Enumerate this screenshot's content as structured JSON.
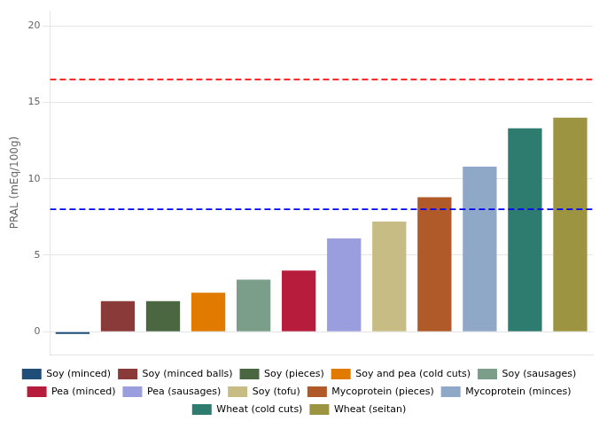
{
  "chart_data": {
    "type": "bar",
    "categories": [
      "Soy (minced)",
      "Soy (minced balls)",
      "Soy (pieces)",
      "Soy and pea (cold cuts)",
      "Soy (sausages)",
      "Pea (minced)",
      "Pea (sausages)",
      "Soy (tofu)",
      "Mycoprotein (pieces)",
      "Mycoprotein (minces)",
      "Wheat (cold cuts)",
      "Wheat (seitan)"
    ],
    "values": [
      -0.15,
      2.0,
      2.0,
      2.55,
      3.4,
      4.0,
      6.1,
      7.2,
      8.8,
      10.8,
      13.3,
      14.0
    ],
    "colors": [
      "#1f4e79",
      "#8b3a3a",
      "#4a6741",
      "#e07b00",
      "#7a9e8a",
      "#b81c3c",
      "#9b9ede",
      "#c8bc85",
      "#b05a2a",
      "#8fa8c8",
      "#2e7b6f",
      "#9c9440"
    ],
    "ylabel": "PRAL (mEq/100g)",
    "ylim": [
      -1.5,
      21
    ],
    "yticks": [
      0,
      5,
      10,
      15,
      20
    ],
    "reference_lines": [
      {
        "value": 16.5,
        "color": "red",
        "line_style": "dashed"
      },
      {
        "value": 8.0,
        "color": "blue",
        "line_style": "dashed"
      }
    ],
    "grid": true,
    "legend": "bottom",
    "tick_labels": "y"
  }
}
